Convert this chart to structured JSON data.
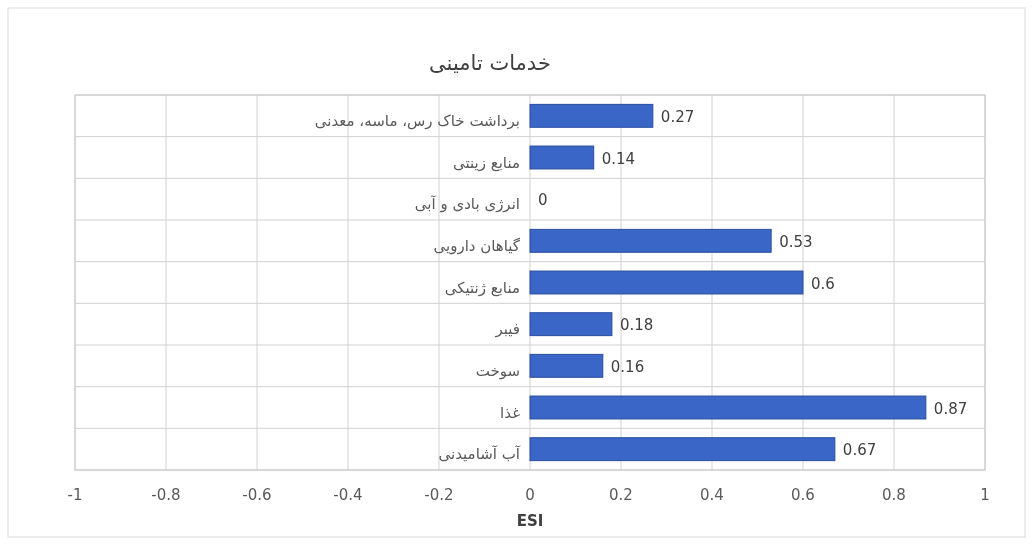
{
  "chart_data": {
    "type": "bar",
    "orientation": "horizontal",
    "title": "خدمات تامینی",
    "xlabel": "ESI",
    "categories": [
      "برداشت خاک رس، ماسه، معدنی",
      "منابع زینتی",
      "انرژی بادی و آبی",
      "گیاهان دارویی",
      "منابع ژنتیکی",
      "فیبر",
      "سوخت",
      "غذا",
      "آب آشامیدنی"
    ],
    "values": [
      0.27,
      0.14,
      0,
      0.53,
      0.6,
      0.18,
      0.16,
      0.87,
      0.67
    ],
    "color": "#3a66c8",
    "xlim": [
      -1,
      1
    ],
    "xticks": [
      -1,
      -0.8,
      -0.6,
      -0.4,
      -0.2,
      0,
      0.2,
      0.4,
      0.6,
      0.8,
      1
    ],
    "grid": true,
    "data_labels": true
  }
}
